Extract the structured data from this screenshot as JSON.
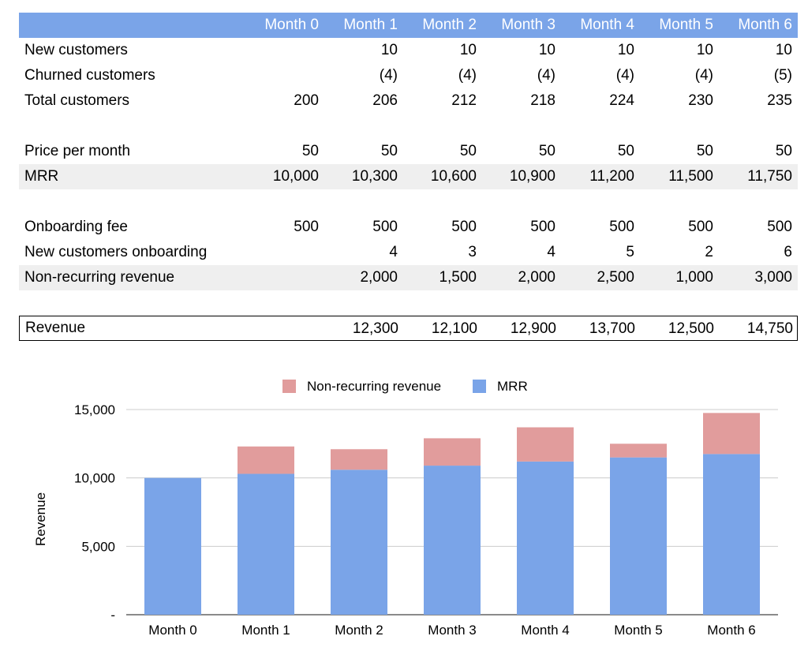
{
  "table": {
    "header": [
      "Month 0",
      "Month 1",
      "Month 2",
      "Month 3",
      "Month 4",
      "Month 5",
      "Month 6"
    ],
    "rows": [
      {
        "label": "New customers",
        "values": [
          "",
          "10",
          "10",
          "10",
          "10",
          "10",
          "10"
        ]
      },
      {
        "label": "Churned customers",
        "values": [
          "",
          "(4)",
          "(4)",
          "(4)",
          "(4)",
          "(4)",
          "(5)"
        ]
      },
      {
        "label": "Total customers",
        "values": [
          "200",
          "206",
          "212",
          "218",
          "224",
          "230",
          "235"
        ]
      },
      {
        "label": "Price per month",
        "values": [
          "50",
          "50",
          "50",
          "50",
          "50",
          "50",
          "50"
        ]
      },
      {
        "label": "MRR",
        "values": [
          "10,000",
          "10,300",
          "10,600",
          "10,900",
          "11,200",
          "11,500",
          "11,750"
        ]
      },
      {
        "label": "Onboarding fee",
        "values": [
          "500",
          "500",
          "500",
          "500",
          "500",
          "500",
          "500"
        ]
      },
      {
        "label": "New customers onboarding",
        "values": [
          "",
          "4",
          "3",
          "4",
          "5",
          "2",
          "6"
        ]
      },
      {
        "label": "Non-recurring revenue",
        "values": [
          "",
          "2,000",
          "1,500",
          "2,000",
          "2,500",
          "1,000",
          "3,000"
        ]
      },
      {
        "label": "Revenue",
        "values": [
          "",
          "12,300",
          "12,100",
          "12,900",
          "13,700",
          "12,500",
          "14,750"
        ]
      }
    ]
  },
  "chart_data": {
    "type": "bar",
    "stacked": true,
    "categories": [
      "Month 0",
      "Month 1",
      "Month 2",
      "Month 3",
      "Month 4",
      "Month 5",
      "Month 6"
    ],
    "series": [
      {
        "name": "MRR",
        "color": "#7aa4e8",
        "values": [
          10000,
          10300,
          10600,
          10900,
          11200,
          11500,
          11750
        ]
      },
      {
        "name": "Non-recurring revenue",
        "color": "#e19c9c",
        "values": [
          0,
          2000,
          1500,
          2000,
          2500,
          1000,
          3000
        ]
      }
    ],
    "legend_order": [
      "Non-recurring revenue",
      "MRR"
    ],
    "legend_position": "top",
    "ylabel": "Revenue",
    "xlabel": "",
    "ylim": [
      0,
      15000
    ],
    "yticks": [
      0,
      5000,
      10000,
      15000
    ],
    "ytick_labels": [
      "-",
      "5,000",
      "10,000",
      "15,000"
    ],
    "grid": true
  }
}
